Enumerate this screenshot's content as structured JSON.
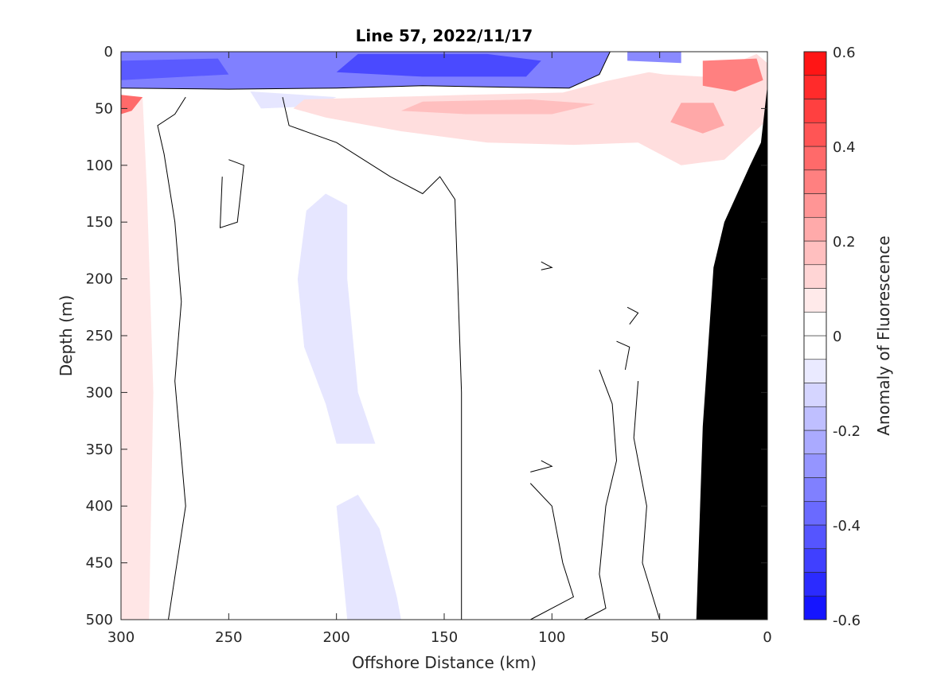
{
  "chart_data": {
    "type": "heatmap",
    "title": "Line 57, 2022/11/17",
    "xlabel": "Offshore Distance (km)",
    "ylabel": "Depth (m)",
    "colorbar_label": "Anomaly of Fluorescence",
    "x_axis": {
      "reversed": true,
      "range": [
        300,
        0
      ],
      "ticks": [
        300,
        250,
        200,
        150,
        100,
        50,
        0
      ],
      "tick_labels": [
        "300",
        "250",
        "200",
        "150",
        "100",
        "50",
        "0"
      ]
    },
    "y_axis": {
      "reversed": true,
      "range": [
        0,
        500
      ],
      "ticks": [
        0,
        50,
        100,
        150,
        200,
        250,
        300,
        350,
        400,
        450,
        500
      ],
      "tick_labels": [
        "0",
        "50",
        "100",
        "150",
        "200",
        "250",
        "300",
        "350",
        "400",
        "450",
        "500"
      ]
    },
    "colorbar": {
      "range": [
        -0.6,
        0.6
      ],
      "ticks": [
        -0.6,
        -0.4,
        -0.2,
        0,
        0.2,
        0.4,
        0.6
      ],
      "tick_labels": [
        "-0.6",
        "-0.4",
        "-0.2",
        "0",
        "0.2",
        "0.4",
        "0.6"
      ],
      "levels": [
        -0.6,
        -0.55,
        -0.5,
        -0.45,
        -0.4,
        -0.35,
        -0.3,
        -0.25,
        -0.2,
        -0.15,
        -0.1,
        -0.05,
        0,
        0.05,
        0.1,
        0.15,
        0.2,
        0.25,
        0.3,
        0.35,
        0.4,
        0.45,
        0.5,
        0.55,
        0.6
      ],
      "colors": [
        "#0000ff",
        "#1515ff",
        "#2b2bff",
        "#4040ff",
        "#5555ff",
        "#6a6aff",
        "#8080ff",
        "#9595ff",
        "#aaaaff",
        "#bfbfff",
        "#d5d5ff",
        "#eaeaff",
        "#ffffff",
        "#ffffff",
        "#ffeaea",
        "#ffd5d5",
        "#ffbfbf",
        "#ffaaaa",
        "#ff9595",
        "#ff8080",
        "#ff6a6a",
        "#ff5555",
        "#ff4040",
        "#ff2b2b",
        "#ff1515",
        "#ff0000"
      ]
    },
    "regions": [
      {
        "name": "surface-negative",
        "value": -0.3,
        "color": "#8080ff",
        "points": [
          [
            300,
            0
          ],
          [
            73,
            0
          ],
          [
            78,
            20
          ],
          [
            92,
            32
          ],
          [
            130,
            31
          ],
          [
            160,
            30
          ],
          [
            200,
            32
          ],
          [
            250,
            33
          ],
          [
            300,
            32
          ]
        ]
      },
      {
        "name": "surface-negative-core",
        "value": -0.45,
        "color": "#4a4aff",
        "points": [
          [
            190,
            2
          ],
          [
            130,
            2
          ],
          [
            105,
            8
          ],
          [
            112,
            22
          ],
          [
            160,
            22
          ],
          [
            200,
            18
          ]
        ]
      },
      {
        "name": "surface-negative-left",
        "value": -0.4,
        "color": "#5a5aff",
        "points": [
          [
            300,
            8
          ],
          [
            255,
            6
          ],
          [
            250,
            20
          ],
          [
            300,
            25
          ]
        ]
      },
      {
        "name": "surface-negative-right",
        "value": -0.3,
        "color": "#8a8aff",
        "points": [
          [
            65,
            0
          ],
          [
            40,
            0
          ],
          [
            40,
            10
          ],
          [
            65,
            8
          ]
        ]
      },
      {
        "name": "weak-negative-band",
        "value": -0.1,
        "color": "#e6e6ff",
        "points": [
          [
            240,
            35
          ],
          [
            200,
            40
          ],
          [
            210,
            48
          ],
          [
            235,
            50
          ]
        ]
      },
      {
        "name": "subsurface-positive",
        "value": 0.15,
        "color": "#ffdede",
        "points": [
          [
            215,
            42
          ],
          [
            140,
            38
          ],
          [
            95,
            36
          ],
          [
            75,
            26
          ],
          [
            55,
            18
          ],
          [
            48,
            20
          ],
          [
            30,
            22
          ],
          [
            5,
            2
          ],
          [
            0,
            10
          ],
          [
            0,
            60
          ],
          [
            20,
            95
          ],
          [
            40,
            100
          ],
          [
            60,
            80
          ],
          [
            90,
            82
          ],
          [
            130,
            80
          ],
          [
            170,
            70
          ],
          [
            205,
            58
          ],
          [
            220,
            50
          ]
        ]
      },
      {
        "name": "subsurface-positive-core-a",
        "value": 0.25,
        "color": "#ffbfbf",
        "points": [
          [
            160,
            44
          ],
          [
            110,
            42
          ],
          [
            80,
            46
          ],
          [
            100,
            55
          ],
          [
            140,
            55
          ],
          [
            170,
            52
          ]
        ]
      },
      {
        "name": "subsurface-positive-core-b",
        "value": 0.3,
        "color": "#ffa8a8",
        "points": [
          [
            40,
            45
          ],
          [
            25,
            45
          ],
          [
            20,
            65
          ],
          [
            30,
            72
          ],
          [
            45,
            62
          ]
        ]
      },
      {
        "name": "subsurface-positive-core-c",
        "value": 0.4,
        "color": "#ff8080",
        "points": [
          [
            30,
            8
          ],
          [
            5,
            6
          ],
          [
            2,
            25
          ],
          [
            15,
            35
          ],
          [
            30,
            30
          ]
        ]
      },
      {
        "name": "left-edge-positive",
        "value": 0.1,
        "color": "#ffe6e6",
        "points": [
          [
            300,
            40
          ],
          [
            290,
            40
          ],
          [
            288,
            120
          ],
          [
            285,
            300
          ],
          [
            287,
            500
          ],
          [
            300,
            500
          ]
        ]
      },
      {
        "name": "left-edge-positive-core",
        "value": 0.35,
        "color": "#ff6a6a",
        "points": [
          [
            300,
            38
          ],
          [
            290,
            40
          ],
          [
            295,
            52
          ],
          [
            300,
            55
          ]
        ]
      },
      {
        "name": "mid-negative-plume",
        "value": -0.1,
        "color": "#e6e6ff",
        "points": [
          [
            205,
            125
          ],
          [
            195,
            135
          ],
          [
            195,
            200
          ],
          [
            190,
            300
          ],
          [
            182,
            345
          ],
          [
            200,
            345
          ],
          [
            205,
            310
          ],
          [
            215,
            260
          ],
          [
            218,
            200
          ],
          [
            214,
            140
          ]
        ]
      },
      {
        "name": "deep-negative-plume",
        "value": -0.1,
        "color": "#e6e6ff",
        "points": [
          [
            190,
            390
          ],
          [
            180,
            420
          ],
          [
            172,
            480
          ],
          [
            170,
            500
          ],
          [
            195,
            500
          ],
          [
            198,
            440
          ],
          [
            200,
            400
          ]
        ]
      }
    ],
    "zero_contours": [
      [
        [
          300,
          32
        ],
        [
          250,
          33
        ],
        [
          200,
          32
        ],
        [
          160,
          30
        ],
        [
          130,
          31
        ],
        [
          92,
          32
        ],
        [
          78,
          20
        ],
        [
          73,
          0
        ]
      ],
      [
        [
          270,
          40
        ],
        [
          275,
          55
        ],
        [
          283,
          65
        ],
        [
          280,
          90
        ],
        [
          275,
          150
        ],
        [
          272,
          220
        ],
        [
          275,
          290
        ],
        [
          270,
          400
        ],
        [
          278,
          500
        ]
      ],
      [
        [
          225,
          40
        ],
        [
          222,
          65
        ],
        [
          200,
          80
        ],
        [
          175,
          110
        ],
        [
          160,
          125
        ],
        [
          152,
          110
        ],
        [
          145,
          130
        ],
        [
          142,
          300
        ],
        [
          142,
          500
        ]
      ],
      [
        [
          250,
          95
        ],
        [
          243,
          100
        ],
        [
          246,
          150
        ],
        [
          254,
          155
        ],
        [
          253,
          110
        ]
      ],
      [
        [
          105,
          185
        ],
        [
          100,
          190
        ],
        [
          105,
          192
        ]
      ],
      [
        [
          65,
          225
        ],
        [
          60,
          230
        ],
        [
          64,
          240
        ]
      ],
      [
        [
          70,
          255
        ],
        [
          64,
          260
        ],
        [
          66,
          280
        ]
      ],
      [
        [
          78,
          280
        ],
        [
          72,
          310
        ],
        [
          70,
          360
        ],
        [
          75,
          400
        ],
        [
          78,
          460
        ],
        [
          75,
          490
        ],
        [
          85,
          500
        ]
      ],
      [
        [
          60,
          290
        ],
        [
          62,
          340
        ],
        [
          56,
          400
        ],
        [
          58,
          450
        ],
        [
          50,
          500
        ]
      ],
      [
        [
          110,
          380
        ],
        [
          100,
          400
        ],
        [
          95,
          450
        ],
        [
          90,
          480
        ],
        [
          110,
          500
        ]
      ],
      [
        [
          105,
          360
        ],
        [
          100,
          365
        ],
        [
          110,
          370
        ]
      ]
    ],
    "bathymetry_mask": {
      "color": "#000000",
      "points": [
        [
          0,
          30
        ],
        [
          3,
          80
        ],
        [
          8,
          100
        ],
        [
          20,
          150
        ],
        [
          25,
          190
        ],
        [
          30,
          330
        ],
        [
          33,
          500
        ],
        [
          0,
          500
        ]
      ]
    },
    "grid": false
  }
}
